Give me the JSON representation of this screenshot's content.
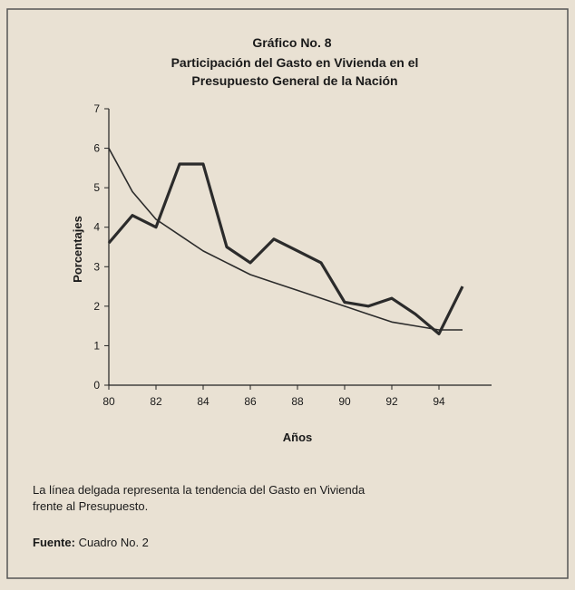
{
  "chart_data": {
    "type": "line",
    "title": "Gráfico No. 8",
    "subtitle": [
      "Participación del Gasto  en Vivienda en el",
      "Presupuesto General de la Nación"
    ],
    "x_label": "Años",
    "y_label": "Porcentajes",
    "x": [
      80,
      81,
      82,
      83,
      84,
      85,
      86,
      87,
      88,
      89,
      90,
      91,
      92,
      93,
      94,
      95
    ],
    "series": [
      {
        "color": "#2b2b2b",
        "line_width": 3.2,
        "values": [
          3.6,
          4.3,
          4.0,
          5.6,
          5.6,
          3.5,
          3.1,
          3.7,
          3.4,
          3.1,
          2.1,
          2.0,
          2.2,
          1.8,
          1.3,
          2.5
        ]
      },
      {
        "color": "#2b2b2b",
        "line_width": 1.6,
        "values": [
          6.0,
          4.9,
          4.2,
          3.8,
          3.4,
          3.1,
          2.8,
          2.6,
          2.4,
          2.2,
          2.0,
          1.8,
          1.6,
          1.5,
          1.4,
          1.4
        ]
      }
    ],
    "xlim": [
      80,
      96
    ],
    "xticks": [
      80,
      82,
      84,
      86,
      88,
      90,
      92,
      94
    ],
    "ylim": [
      0,
      7
    ],
    "yticks": [
      0,
      1,
      2,
      3,
      4,
      5,
      6,
      7
    ],
    "note": [
      "La línea delgada representa la tendencia del Gasto en Vivienda",
      "frente al Presupuesto."
    ],
    "source": {
      "label": "Fuente:",
      "text": "Cuadro No. 2"
    }
  }
}
